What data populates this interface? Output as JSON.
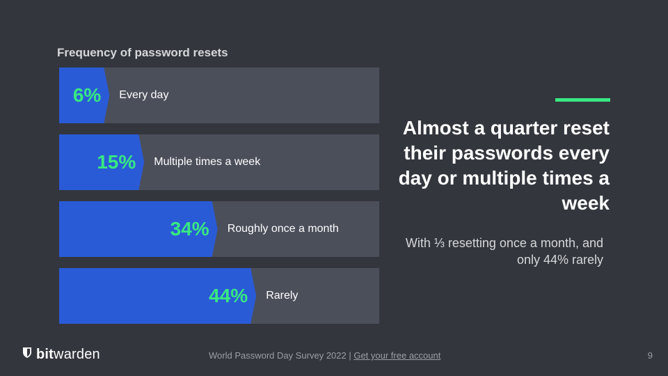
{
  "colors": {
    "background": "#33363d",
    "bar_track": "#4b4f5a",
    "bar_fill": "#2a5bd7",
    "value_text": "#38e882",
    "accent": "#38e882"
  },
  "chart_data": {
    "type": "bar",
    "orientation": "horizontal",
    "title": "Frequency of password resets",
    "categories": [
      "Every day",
      "Multiple times a week",
      "Roughly once a month",
      "Rarely"
    ],
    "values": [
      6,
      15,
      34,
      44
    ],
    "value_labels": [
      "6%",
      "15%",
      "34%",
      "44%"
    ],
    "unit": "%",
    "grid": false,
    "legend": "none"
  },
  "headline": "Almost a quarter reset their passwords every day or multiple times a week",
  "subhead": "With ⅓ resetting once a month, and only 44% rarely",
  "logo": {
    "bold": "bit",
    "regular": "warden",
    "icon": "shield-icon"
  },
  "footer": {
    "text": "World Password Day Survey 2022 | ",
    "link": "Get your free account"
  },
  "page_number": "9"
}
